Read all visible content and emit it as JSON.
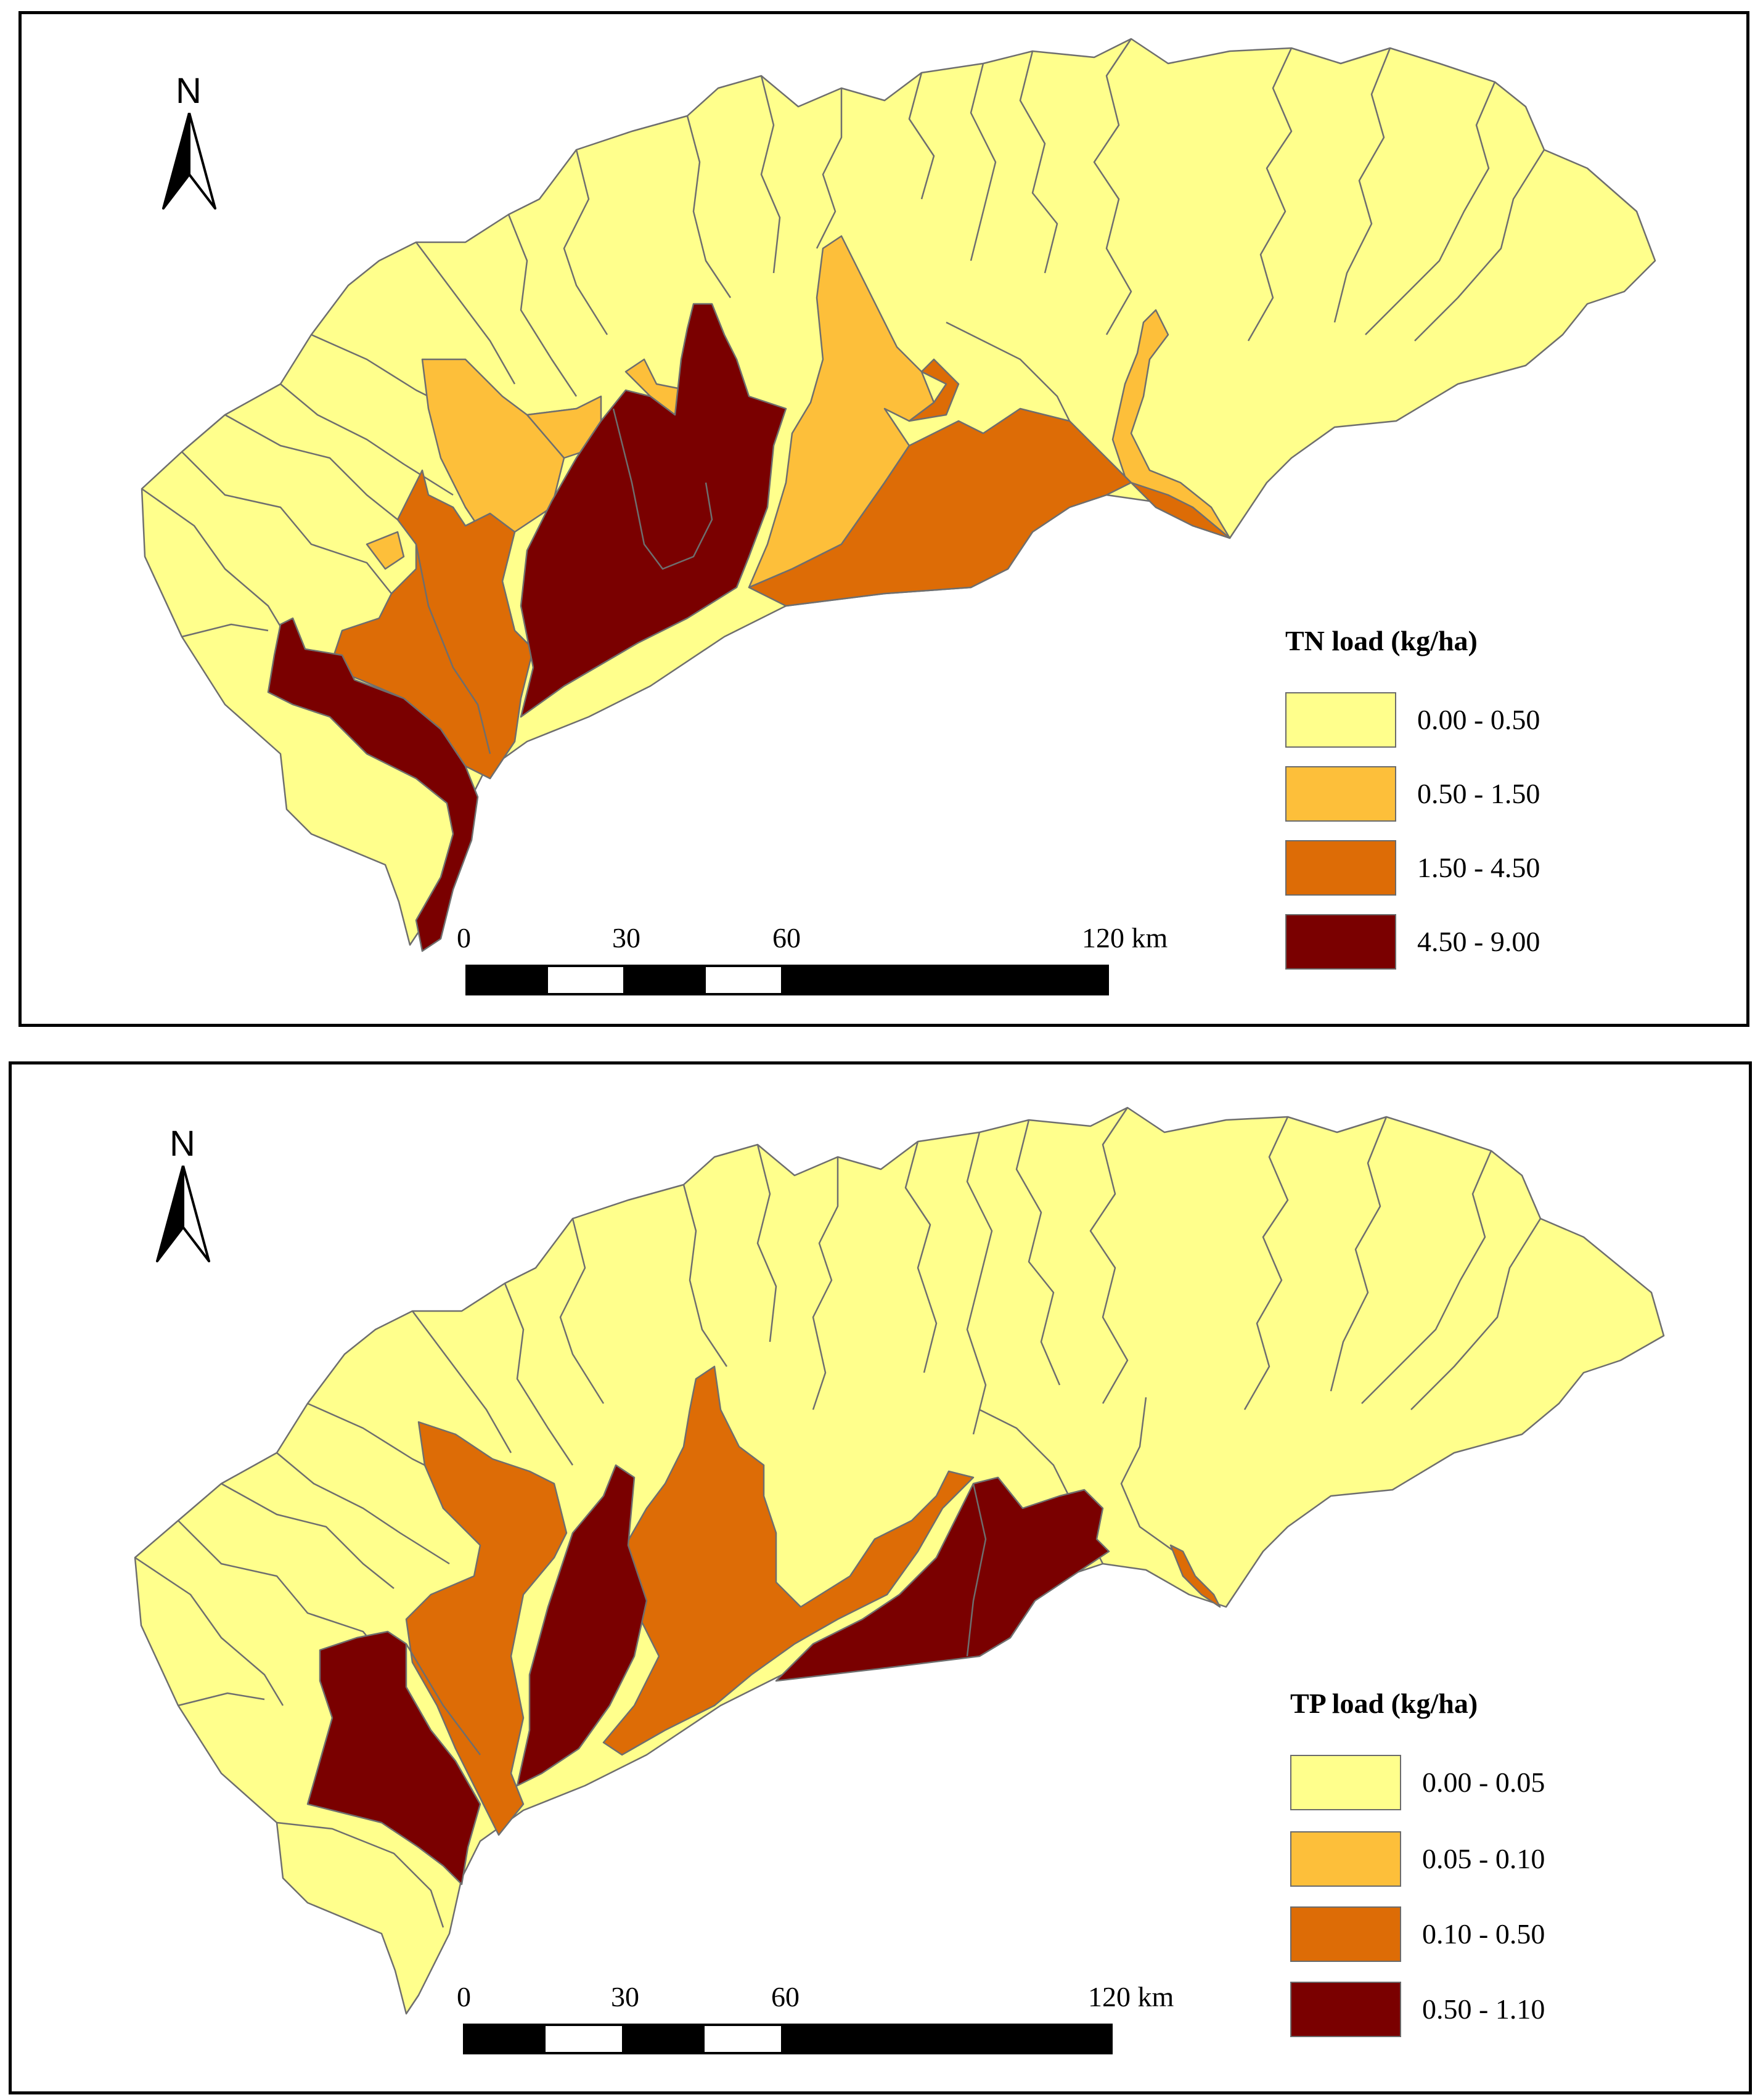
{
  "colors": {
    "class_1": "#FFFF8C",
    "class_2": "#FDBF3A",
    "class_3": "#DD6C06",
    "class_4": "#7A0000",
    "boundary": "#6E6E6E"
  },
  "maps": [
    {
      "north_arrow": {
        "label": "N",
        "icon": "north-arrow-icon"
      },
      "legend": {
        "title": "TN load (kg/ha)",
        "items": [
          {
            "label": "0.00 - 0.50",
            "color": "#FFFF8C"
          },
          {
            "label": "0.50 - 1.50",
            "color": "#FDBF3A"
          },
          {
            "label": "1.50 - 4.50",
            "color": "#DD6C06"
          },
          {
            "label": "4.50 - 9.00",
            "color": "#7A0000"
          }
        ]
      },
      "scale_bar": {
        "labels": [
          "0",
          "30",
          "60",
          "120 km"
        ]
      }
    },
    {
      "north_arrow": {
        "label": "N",
        "icon": "north-arrow-icon"
      },
      "legend": {
        "title": "TP load (kg/ha)",
        "items": [
          {
            "label": "0.00 - 0.05",
            "color": "#FFFF8C"
          },
          {
            "label": "0.05 - 0.10",
            "color": "#FDBF3A"
          },
          {
            "label": "0.10 - 0.50",
            "color": "#DD6C06"
          },
          {
            "label": "0.50 - 1.10",
            "color": "#7A0000"
          }
        ]
      },
      "scale_bar": {
        "labels": [
          "0",
          "30",
          "60",
          "120 km"
        ]
      }
    }
  ]
}
